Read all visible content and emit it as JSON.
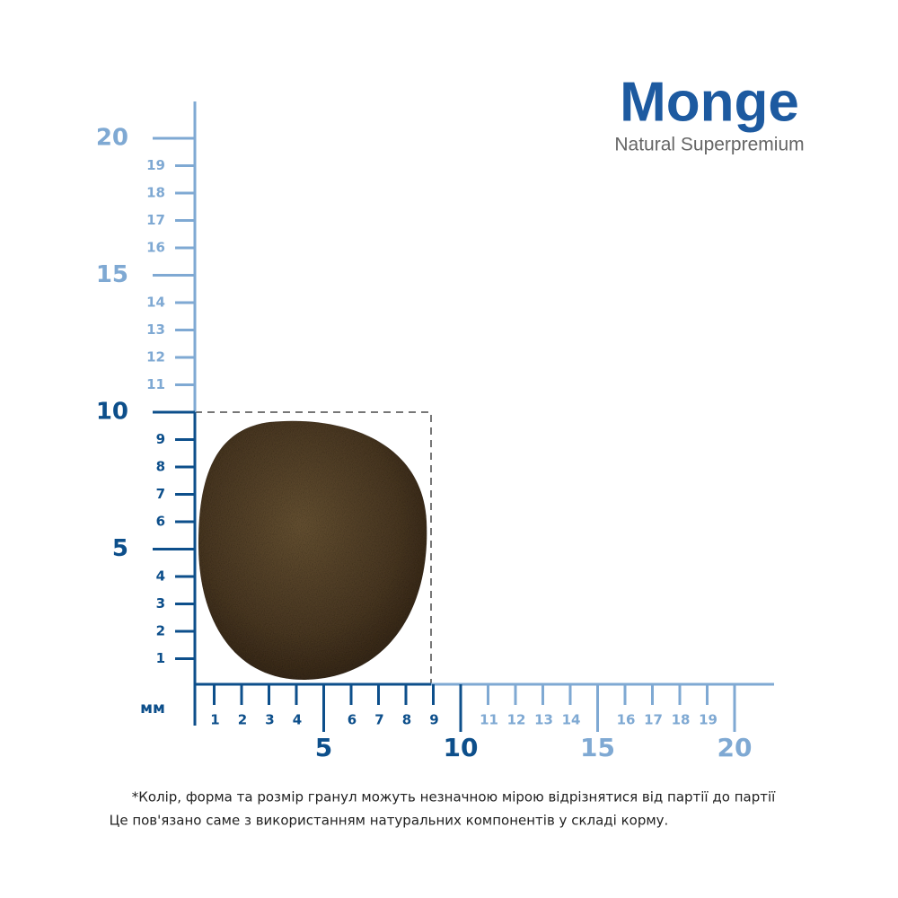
{
  "logo": {
    "brand": "Monge",
    "tagline": "Natural Superpremium"
  },
  "ruler": {
    "unit": "мм",
    "y_axis": {
      "major": [
        5,
        10,
        15,
        20
      ],
      "minor": [
        1,
        2,
        3,
        4,
        6,
        7,
        8,
        9,
        11,
        12,
        13,
        14,
        16,
        17,
        18,
        19
      ]
    },
    "x_axis": {
      "major": [
        5,
        10,
        15,
        20
      ],
      "minor": [
        1,
        2,
        3,
        4,
        6,
        7,
        8,
        9,
        11,
        12,
        13,
        14,
        16,
        17,
        18,
        19
      ]
    }
  },
  "note": {
    "lines": [
      "*Колір, форма та розмір гранул можуть незначною мірою відрізнятися від партії до партії",
      "Це пов'язано саме з використанням натуральних компонентів у складі корму."
    ]
  }
}
